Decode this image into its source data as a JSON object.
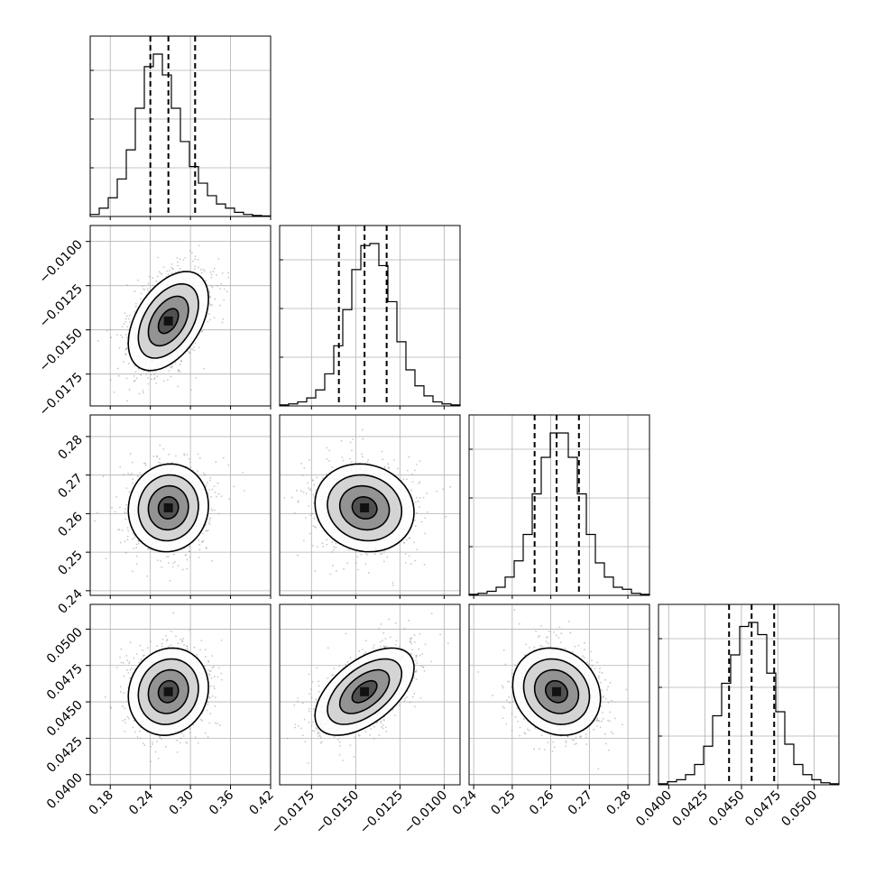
{
  "chart_data": {
    "type": "corner",
    "parameters": 4,
    "grid": true,
    "ranges": [
      [
        0.15,
        0.42
      ],
      [
        -0.0193,
        -0.0091
      ],
      [
        0.2388,
        0.2856
      ],
      [
        0.0393,
        0.0517
      ]
    ],
    "ticks": [
      {
        "values": [
          0.18,
          0.24,
          0.3,
          0.36,
          0.42
        ],
        "labels": [
          "0.18",
          "0.24",
          "0.30",
          "0.36",
          "0.42"
        ]
      },
      {
        "values": [
          -0.0175,
          -0.015,
          -0.0125,
          -0.01
        ],
        "labels": [
          "−0.0175",
          "−0.0150",
          "−0.0125",
          "−0.0100"
        ]
      },
      {
        "values": [
          0.24,
          0.25,
          0.26,
          0.27,
          0.28
        ],
        "labels": [
          "0.24",
          "0.25",
          "0.26",
          "0.27",
          "0.28"
        ]
      },
      {
        "values": [
          0.04,
          0.0425,
          0.045,
          0.0475,
          0.05
        ],
        "labels": [
          "0.0400",
          "0.0425",
          "0.0450",
          "0.0475",
          "0.0500"
        ]
      }
    ],
    "medians": [
      0.267,
      -0.0145,
      0.2615,
      0.0457
    ],
    "sigmas": [
      0.03,
      0.0014,
      0.0057,
      0.0015
    ],
    "quantiles": [
      [
        0.24,
        0.267,
        0.307
      ],
      [
        -0.01595,
        -0.0145,
        -0.01325
      ],
      [
        0.2558,
        0.2615,
        0.2673
      ],
      [
        0.04415,
        0.0457,
        0.04725
      ]
    ],
    "histograms": [
      {
        "bins": 20,
        "counts": [
          1,
          4,
          9,
          18,
          32,
          52,
          72,
          78,
          68,
          52,
          36,
          24,
          16,
          10,
          6,
          4,
          2,
          1,
          0.5,
          0.3
        ]
      },
      {
        "bins": 20,
        "counts": [
          0.5,
          1,
          2,
          4,
          8,
          16,
          30,
          48,
          68,
          80,
          81,
          70,
          52,
          32,
          18,
          10,
          5,
          2,
          1,
          0.5
        ]
      },
      {
        "bins": 20,
        "counts": [
          0.5,
          1,
          2,
          4,
          9,
          17,
          30,
          50,
          68,
          80,
          80,
          68,
          50,
          30,
          16,
          9,
          4,
          3,
          1,
          0.5
        ]
      },
      {
        "bins": 20,
        "counts": [
          0.5,
          1.5,
          2.5,
          5,
          10,
          19,
          34,
          50,
          64,
          78,
          80,
          74,
          55,
          36,
          20,
          10,
          5,
          2.5,
          1,
          0.5
        ]
      }
    ],
    "covariances": [
      {
        "row": 1,
        "col": 0,
        "corr": 0.45
      },
      {
        "row": 2,
        "col": 0,
        "corr": 0.05
      },
      {
        "row": 2,
        "col": 1,
        "corr": -0.1
      },
      {
        "row": 3,
        "col": 0,
        "corr": 0.1
      },
      {
        "row": 3,
        "col": 1,
        "corr": 0.55
      },
      {
        "row": 3,
        "col": 2,
        "corr": -0.15
      }
    ],
    "contour_levels_sigma": [
      0.5,
      1.0,
      1.5,
      2.0
    ]
  }
}
